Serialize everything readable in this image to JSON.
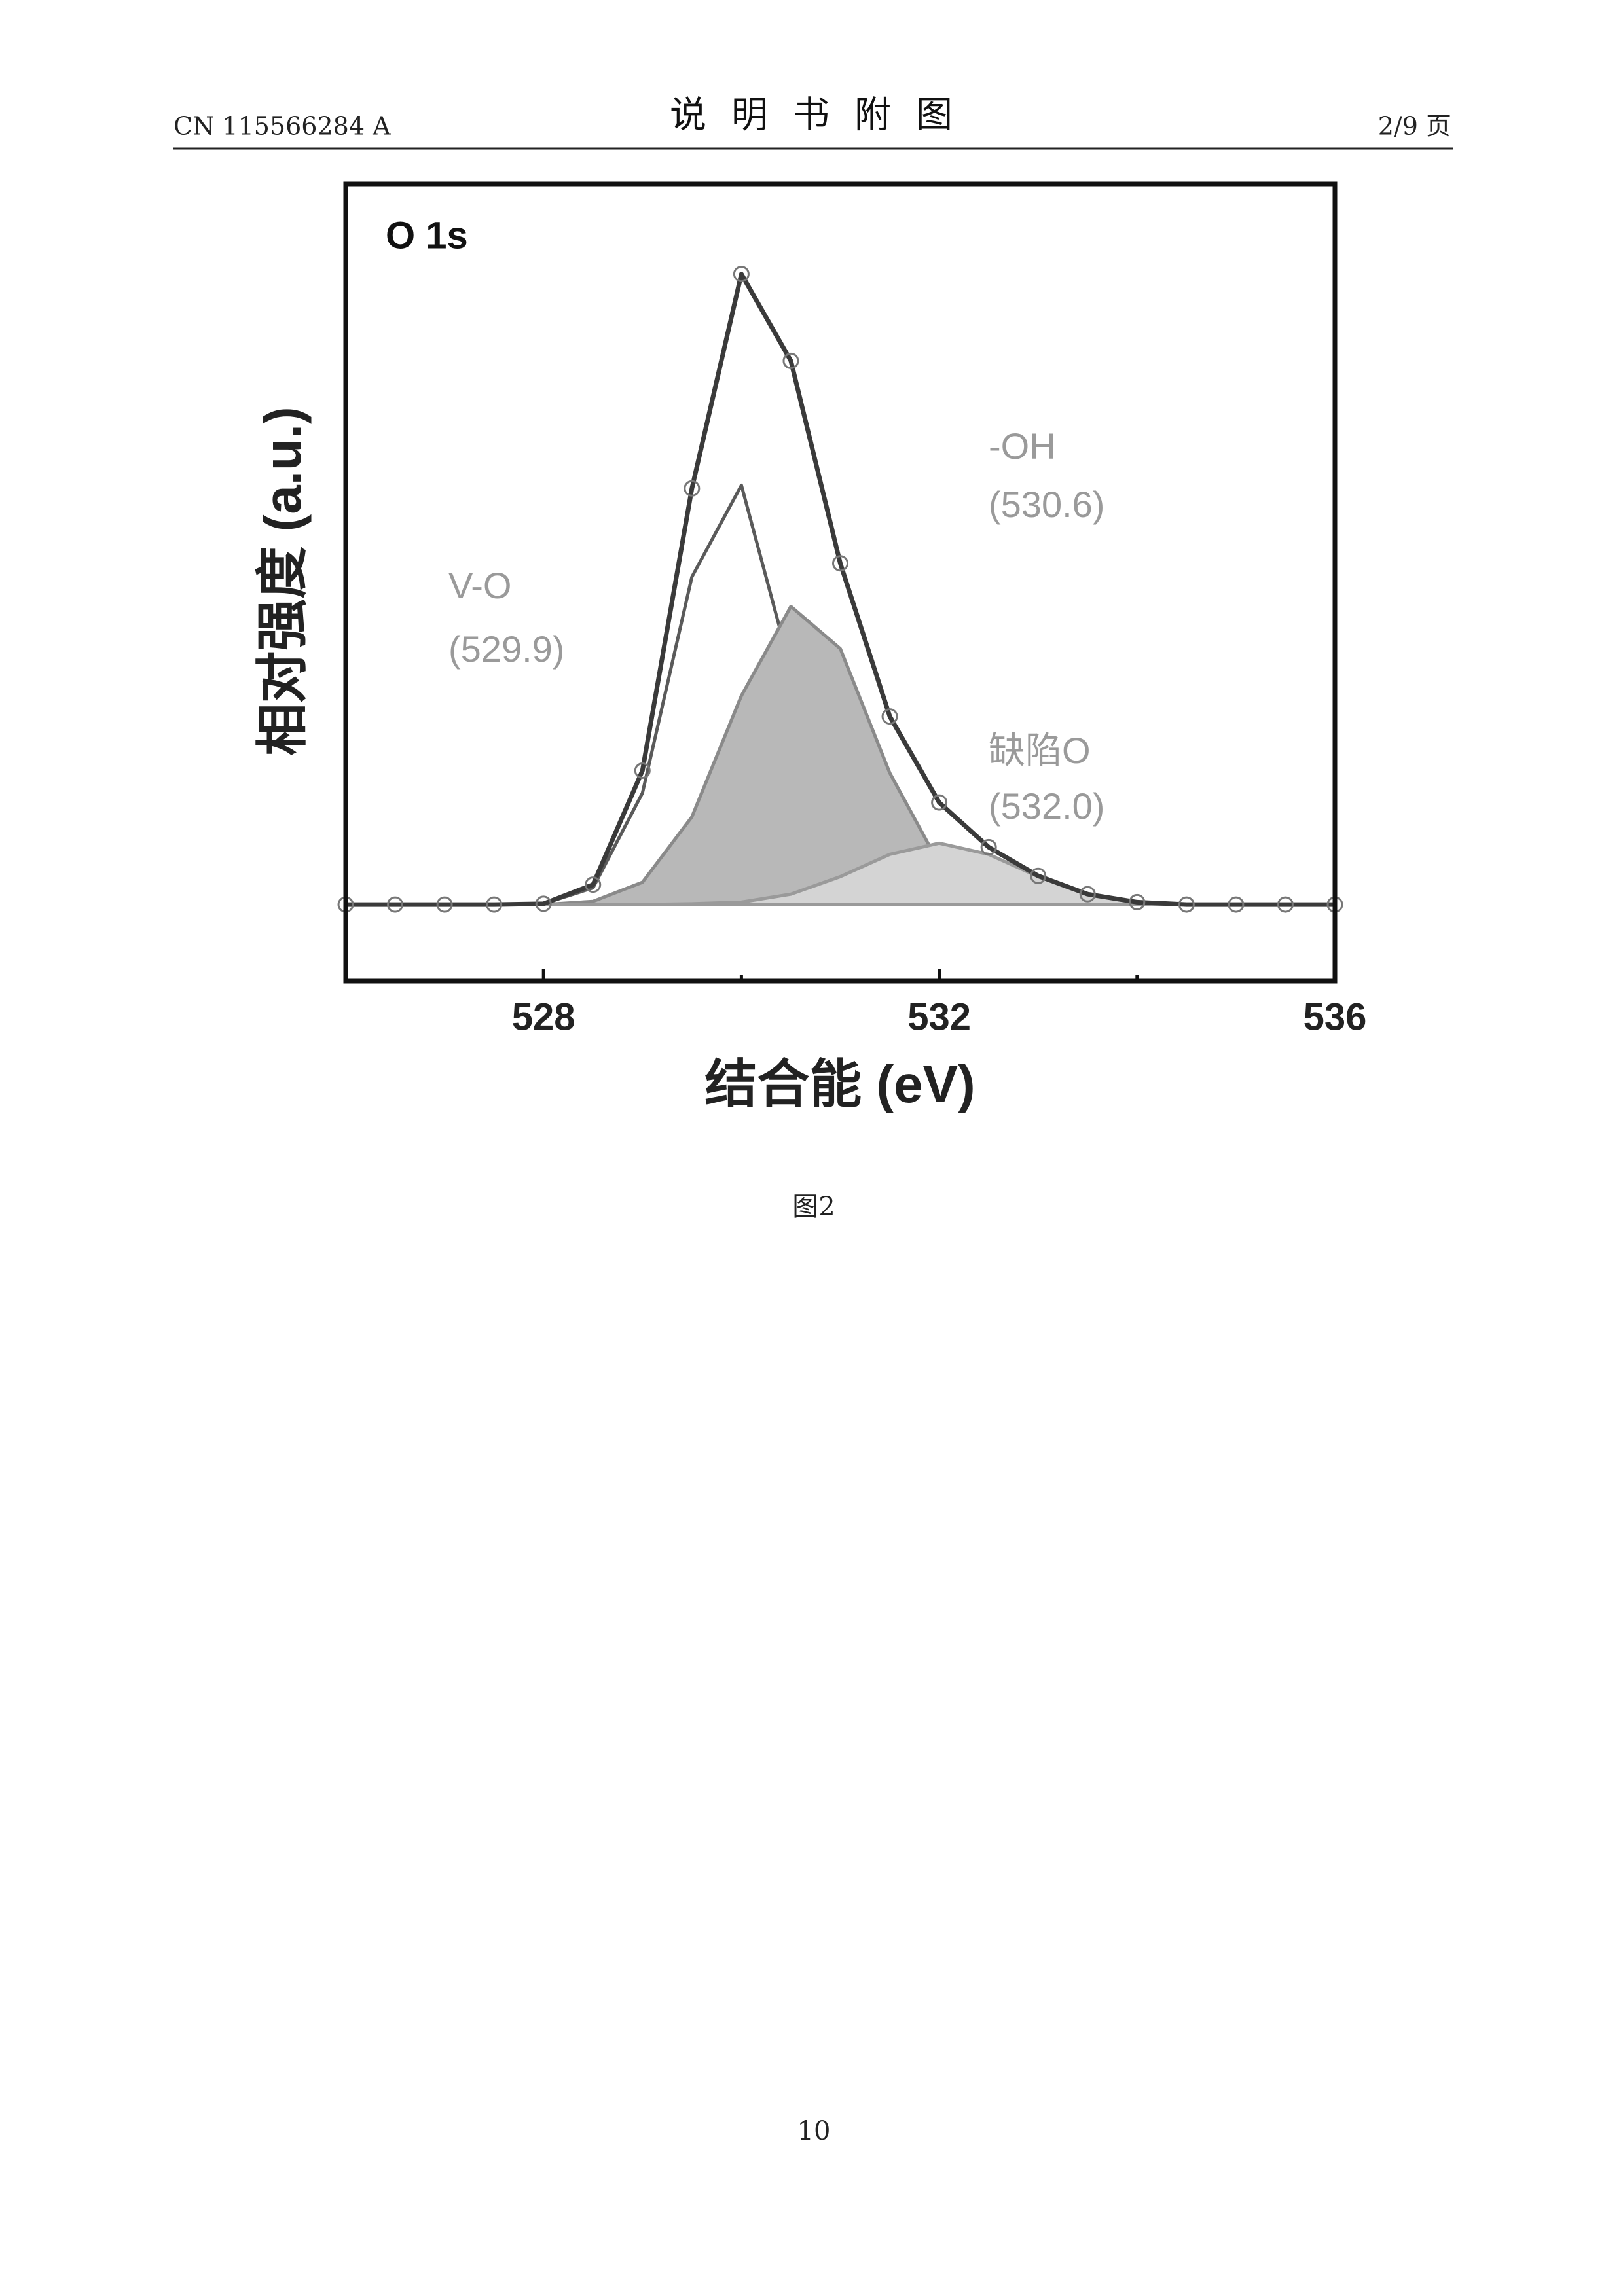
{
  "header": {
    "left": "CN 115566284 A",
    "title": "说明书附图",
    "right": "2/9 页"
  },
  "chart_data": {
    "type": "line",
    "panel_label": "O 1s",
    "x_label": "结合能 (eV)",
    "y_label": "相对强度 (a.u.)",
    "xlim": [
      526,
      536
    ],
    "ylim": [
      0,
      100
    ],
    "xticks": [
      528,
      532,
      536
    ],
    "xminorticks": [
      530,
      534
    ],
    "x": [
      526,
      526.5,
      527,
      527.5,
      528,
      528.5,
      529,
      529.5,
      530,
      530.5,
      531,
      531.5,
      532,
      532.5,
      533,
      533.5,
      534,
      534.5,
      535,
      535.5,
      536
    ],
    "series": [
      {
        "color": "#5a5a5a",
        "values": [
          9.6,
          9.6,
          9.6,
          9.6,
          9.7,
          11.7,
          23.6,
          50.7,
          62.2,
          39.1,
          16.8,
          10.4,
          9.6,
          9.6,
          9.6,
          9.6,
          9.6,
          9.6,
          9.6,
          9.6,
          9.6
        ]
      },
      {
        "color": "#8a8a8a",
        "fill": "#b8b8b8",
        "values": [
          9.6,
          9.6,
          9.6,
          9.6,
          9.6,
          10.0,
          12.4,
          20.6,
          35.8,
          47.0,
          41.7,
          26.1,
          14.7,
          10.6,
          9.7,
          9.6,
          9.6,
          9.6,
          9.6,
          9.6,
          9.6
        ]
      },
      {
        "color": "#9a9a9a",
        "fill": "#d4d4d4",
        "values": [
          9.6,
          9.6,
          9.6,
          9.6,
          9.6,
          9.6,
          9.6,
          9.7,
          9.9,
          10.9,
          13.1,
          15.9,
          17.3,
          15.9,
          13.1,
          10.9,
          9.9,
          9.6,
          9.6,
          9.6,
          9.6
        ]
      },
      {
        "color": "#3a3a3a",
        "markers": true,
        "values": [
          9.6,
          9.6,
          9.6,
          9.6,
          9.7,
          12.1,
          26.4,
          61.8,
          88.7,
          77.8,
          52.4,
          33.2,
          22.4,
          16.8,
          13.2,
          10.9,
          9.9,
          9.6,
          9.6,
          9.6,
          9.6
        ]
      }
    ],
    "annotations": [
      "V-O",
      "(529.9)",
      "-OH",
      "(530.6)",
      "缺陷O",
      "(532.0)"
    ]
  },
  "caption": "图2",
  "page_number": "10"
}
